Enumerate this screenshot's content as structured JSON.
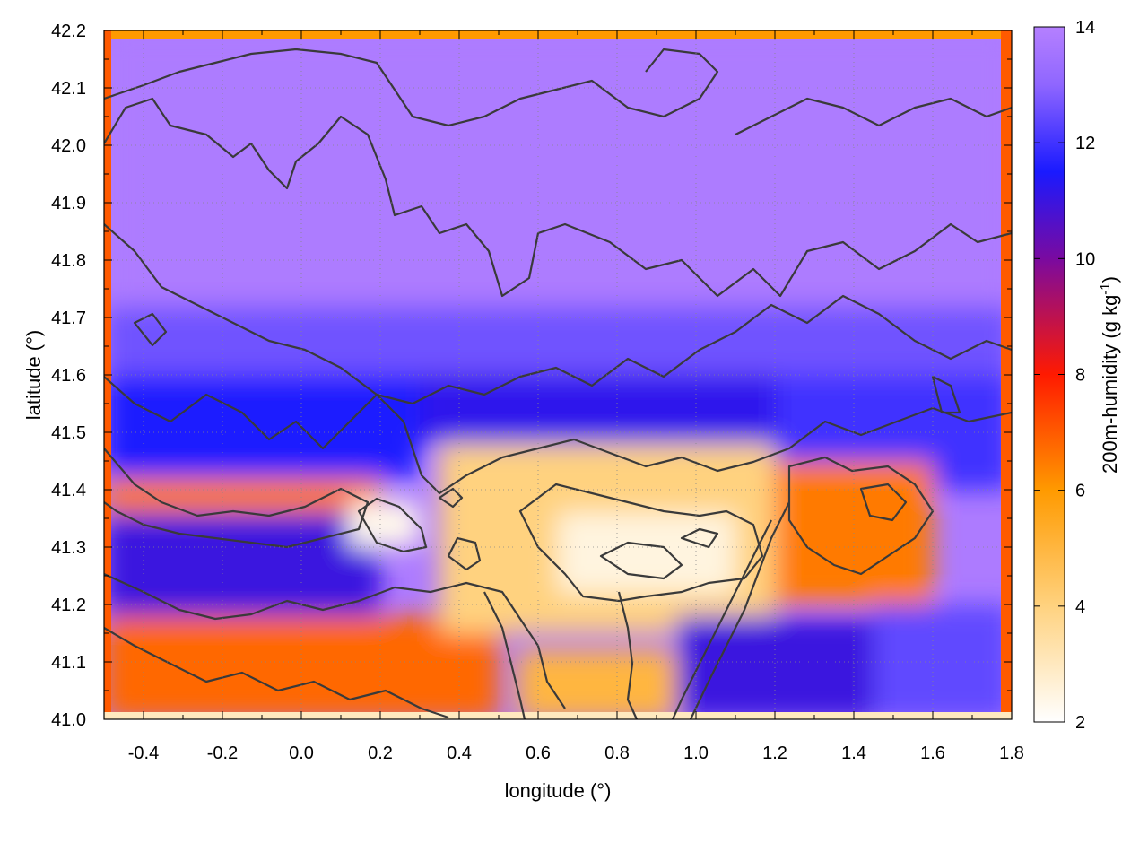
{
  "chart_data": {
    "type": "heatmap",
    "title": "",
    "xlabel": "longitude (°)",
    "ylabel": "latitude (°)",
    "xlim": [
      -0.5,
      1.8
    ],
    "ylim": [
      41.0,
      42.2
    ],
    "xticks": [
      -0.4,
      -0.2,
      0.0,
      0.2,
      0.4,
      0.6,
      0.8,
      1.0,
      1.2,
      1.4,
      1.6,
      1.8
    ],
    "xtick_labels": [
      "-0.4",
      "-0.2",
      "0.0",
      "0.2",
      "0.4",
      "0.6",
      "0.8",
      "1.0",
      "1.2",
      "1.4",
      "1.6",
      "1.8"
    ],
    "yticks": [
      41.0,
      41.1,
      41.2,
      41.3,
      41.4,
      41.5,
      41.6,
      41.7,
      41.8,
      41.9,
      42.0,
      42.1,
      42.2
    ],
    "ytick_labels": [
      "41.0",
      "41.1",
      "41.2",
      "41.3",
      "41.4",
      "41.5",
      "41.6",
      "41.7",
      "41.8",
      "41.9",
      "42.0",
      "42.1",
      "42.2"
    ],
    "grid": true,
    "colorbar": {
      "label": "200m-humidity (g kg",
      "label_superscript": "-1",
      "label_suffix": ")",
      "range": [
        2,
        14
      ],
      "ticks": [
        2,
        4,
        6,
        8,
        10,
        12,
        14
      ],
      "tick_labels": [
        "2",
        "4",
        "6",
        "8",
        "10",
        "12",
        "14"
      ],
      "stops": [
        {
          "value": 2,
          "color": "#ffffff"
        },
        {
          "value": 4,
          "color": "#ffd27f"
        },
        {
          "value": 6,
          "color": "#ff9a00"
        },
        {
          "value": 8,
          "color": "#ff1a00"
        },
        {
          "value": 10,
          "color": "#7a0aa0"
        },
        {
          "value": 11.5,
          "color": "#1a1aff"
        },
        {
          "value": 13,
          "color": "#8f66ff"
        },
        {
          "value": 14,
          "color": "#b580ff"
        }
      ]
    },
    "field_regions": [
      {
        "lon": [
          -0.5,
          1.8
        ],
        "lat": [
          41.7,
          42.2
        ],
        "value": 13.8
      },
      {
        "lon": [
          -0.5,
          1.8
        ],
        "lat": [
          41.58,
          41.72
        ],
        "value": 12.6
      },
      {
        "lon": [
          -0.5,
          0.3
        ],
        "lat": [
          41.42,
          41.6
        ],
        "value": 11.5
      },
      {
        "lon": [
          0.3,
          1.2
        ],
        "lat": [
          41.48,
          41.6
        ],
        "value": 11.2
      },
      {
        "lon": [
          1.2,
          1.8
        ],
        "lat": [
          41.4,
          41.6
        ],
        "value": 12.0
      },
      {
        "lon": [
          -0.5,
          0.2
        ],
        "lat": [
          41.36,
          41.42
        ],
        "value": 6.5
      },
      {
        "lon": [
          -0.5,
          0.2
        ],
        "lat": [
          41.18,
          41.36
        ],
        "value": 11.0
      },
      {
        "lon": [
          -0.5,
          0.5
        ],
        "lat": [
          41.0,
          41.18
        ],
        "value": 6.8
      },
      {
        "lon": [
          0.35,
          1.2
        ],
        "lat": [
          41.15,
          41.48
        ],
        "value": 4.0
      },
      {
        "lon": [
          0.65,
          1.1
        ],
        "lat": [
          41.22,
          41.36
        ],
        "value": 2.5
      },
      {
        "lon": [
          1.2,
          1.6
        ],
        "lat": [
          41.2,
          41.45
        ],
        "value": 6.5
      },
      {
        "lon": [
          1.45,
          1.8
        ],
        "lat": [
          41.0,
          41.2
        ],
        "value": 12.4
      },
      {
        "lon": [
          0.95,
          1.45
        ],
        "lat": [
          41.0,
          41.18
        ],
        "value": 11.0
      },
      {
        "lon": [
          0.55,
          0.95
        ],
        "lat": [
          41.0,
          41.12
        ],
        "value": 5.0
      },
      {
        "lon": [
          0.12,
          0.3
        ],
        "lat": [
          41.3,
          41.38
        ],
        "value": 2.3
      }
    ]
  }
}
